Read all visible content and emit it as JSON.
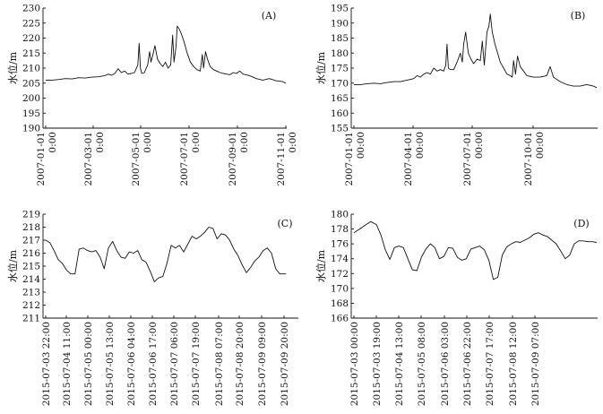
{
  "chart_data": [
    {
      "type": "line",
      "panel_label": "(A)",
      "ylabel": "水位/m",
      "ylim": [
        190,
        230
      ],
      "yticks": [
        190,
        195,
        200,
        205,
        210,
        215,
        220,
        225,
        230
      ],
      "xlim": [
        0,
        365
      ],
      "xticks": [
        {
          "x": 0,
          "label": "2007-01-01 0:00"
        },
        {
          "x": 59,
          "label": "2007-03-01 0:00"
        },
        {
          "x": 120,
          "label": "2007-05-01 0:00"
        },
        {
          "x": 181,
          "label": "2007-07-01 0:00"
        },
        {
          "x": 243,
          "label": "2007-09-01 0:00"
        },
        {
          "x": 304,
          "label": "2007-11-01 0:00"
        }
      ],
      "series": [
        {
          "x": [
            0,
            10,
            20,
            30,
            40,
            50,
            60,
            70,
            80,
            90,
            95,
            100,
            105,
            110,
            115,
            120,
            125,
            130,
            135,
            140,
            142,
            144,
            146,
            150,
            155,
            158,
            160,
            163,
            166,
            170,
            174,
            178,
            182,
            186,
            190,
            193,
            195,
            198,
            200,
            203,
            206,
            210,
            215,
            220,
            225,
            230,
            235,
            238,
            240,
            243,
            246,
            250,
            255,
            260,
            265,
            270,
            275,
            280,
            285,
            290,
            295,
            300,
            310,
            320,
            330,
            340,
            350,
            360,
            365
          ],
          "values": [
            206,
            206,
            206.2,
            206.5,
            206.4,
            206.8,
            206.7,
            207,
            207.1,
            207.5,
            208,
            207.6,
            208.2,
            209.8,
            208.5,
            209,
            208,
            208.2,
            208.5,
            211,
            218.3,
            210,
            208.2,
            208.5,
            211,
            215.5,
            212,
            214.5,
            217.5,
            213,
            211.5,
            210.5,
            212,
            210,
            211,
            221,
            212,
            217,
            224,
            223,
            221.5,
            219,
            215,
            212,
            210.5,
            209.5,
            209,
            214.5,
            210,
            215.5,
            213,
            210.5,
            209.5,
            209,
            208.5,
            208.2,
            208,
            207.8,
            208.5,
            208.2,
            209,
            208,
            207.5,
            206.5,
            206,
            206.5,
            205.8,
            205.5,
            205
          ]
        }
      ]
    },
    {
      "type": "line",
      "panel_label": "(B)",
      "ylabel": "水位/m",
      "ylim": [
        155,
        195
      ],
      "yticks": [
        155,
        160,
        165,
        170,
        175,
        180,
        185,
        190,
        195
      ],
      "xlim": [
        0,
        365
      ],
      "xticks": [
        {
          "x": 0,
          "label": "2007-01-01 00:00"
        },
        {
          "x": 90,
          "label": "2007-04-01 00:00"
        },
        {
          "x": 181,
          "label": "2007-07-01 00:00"
        },
        {
          "x": 273,
          "label": "2007-10-01 00:00"
        }
      ],
      "series": [
        {
          "x": [
            0,
            10,
            20,
            30,
            40,
            50,
            60,
            70,
            80,
            90,
            95,
            100,
            105,
            110,
            115,
            120,
            125,
            130,
            135,
            138,
            140,
            142,
            145,
            150,
            155,
            160,
            163,
            165,
            168,
            172,
            176,
            180,
            185,
            190,
            193,
            196,
            200,
            203,
            205,
            208,
            212,
            216,
            220,
            225,
            230,
            235,
            238,
            240,
            243,
            246,
            250,
            255,
            260,
            270,
            280,
            290,
            295,
            300,
            310,
            320,
            330,
            340,
            350,
            360,
            365
          ],
          "values": [
            169.5,
            169.5,
            169.8,
            170,
            169.8,
            170.2,
            170.5,
            170.5,
            171,
            171.5,
            172.5,
            172,
            173,
            173.5,
            173,
            175,
            174,
            174.5,
            174,
            176,
            183,
            175,
            174.5,
            174.5,
            177,
            180,
            177,
            183,
            187,
            180,
            178,
            176.5,
            178,
            177.5,
            184,
            176,
            187,
            189,
            193,
            187,
            183,
            180,
            177,
            175,
            173,
            172.5,
            172,
            177.5,
            173,
            179,
            175.5,
            174,
            172.5,
            172,
            172,
            172.5,
            175.5,
            172,
            170.5,
            169.5,
            169,
            169,
            169.5,
            169,
            168.5
          ]
        }
      ]
    },
    {
      "type": "line",
      "panel_label": "(C)",
      "ylabel": "水位/m",
      "ylim": [
        211,
        219
      ],
      "yticks": [
        211,
        212,
        213,
        214,
        215,
        216,
        217,
        218,
        219
      ],
      "xlim": [
        0,
        12
      ],
      "xticks": [
        {
          "x": 0,
          "label": "2015-07-03 22:00"
        },
        {
          "x": 1,
          "label": "2015-07-04 11:00"
        },
        {
          "x": 2,
          "label": "2015-07-05 00:00"
        },
        {
          "x": 3,
          "label": "2015-07-05 13:00"
        },
        {
          "x": 4,
          "label": "2015-07-06 04:00"
        },
        {
          "x": 5,
          "label": "2015-07-06 17:00"
        },
        {
          "x": 6,
          "label": "2015-07-07 06:00"
        },
        {
          "x": 7,
          "label": "2015-07-07 19:00"
        },
        {
          "x": 8,
          "label": "2015-07-08 07:00"
        },
        {
          "x": 9,
          "label": "2015-07-08 20:00"
        },
        {
          "x": 10,
          "label": "2015-07-09 09:00"
        },
        {
          "x": 11,
          "label": "2015-07-09 20:00"
        }
      ],
      "series": [
        {
          "x": [
            0,
            0.2,
            0.4,
            0.6,
            0.8,
            1.0,
            1.2,
            1.4,
            1.6,
            1.8,
            2.0,
            2.2,
            2.4,
            2.6,
            2.8,
            3.0,
            3.2,
            3.4,
            3.6,
            3.8,
            4.0,
            4.2,
            4.4,
            4.6,
            4.8,
            5.0,
            5.2,
            5.4,
            5.6,
            5.8,
            6.0,
            6.2,
            6.4,
            6.6,
            6.8,
            7.0,
            7.2,
            7.4,
            7.6,
            7.8,
            8.0,
            8.2,
            8.4,
            8.6,
            8.8,
            9.0,
            9.2,
            9.4,
            9.6,
            9.8,
            10.0,
            10.2,
            10.4,
            10.6,
            10.8,
            11.0,
            11.2,
            11.4,
            11.5
          ],
          "values": [
            217,
            216.8,
            216.2,
            215.5,
            215.2,
            214.7,
            214.4,
            214.4,
            216.3,
            216.4,
            216.2,
            216.1,
            216.2,
            215.7,
            214.8,
            216.4,
            216.9,
            216.2,
            215.7,
            215.6,
            216.1,
            216.0,
            216.2,
            215.5,
            215.3,
            214.6,
            213.8,
            214.1,
            214.2,
            215.2,
            216.6,
            216.4,
            216.6,
            216.1,
            216.7,
            217.3,
            217.1,
            217.3,
            217.6,
            218.0,
            217.9,
            217.1,
            217.5,
            217.4,
            217.0,
            216.3,
            215.8,
            215.1,
            214.5,
            214.9,
            215.4,
            215.7,
            216.2,
            216.4,
            216.0,
            214.8,
            214.4,
            214.4,
            214.4
          ]
        }
      ]
    },
    {
      "type": "line",
      "panel_label": "(D)",
      "ylabel": "水位/m",
      "ylim": [
        166,
        180
      ],
      "yticks": [
        166,
        168,
        170,
        172,
        174,
        176,
        178,
        180
      ],
      "xlim": [
        0,
        10.8
      ],
      "xticks": [
        {
          "x": 0,
          "label": "2015-07-03 00:00"
        },
        {
          "x": 1,
          "label": "2015-07-03 19:00"
        },
        {
          "x": 2,
          "label": "2015-07-04 13:00"
        },
        {
          "x": 3,
          "label": "2015-07-05 08:00"
        },
        {
          "x": 4,
          "label": "2015-07-06 03:00"
        },
        {
          "x": 5,
          "label": "2015-07-06 22:00"
        },
        {
          "x": 6,
          "label": "2015-07-07 17:00"
        },
        {
          "x": 7,
          "label": "2015-07-08 12:00"
        },
        {
          "x": 8,
          "label": "2015-07-09 07:00"
        }
      ],
      "series": [
        {
          "x": [
            0,
            0.25,
            0.5,
            0.75,
            1.0,
            1.2,
            1.4,
            1.6,
            1.8,
            2.0,
            2.2,
            2.4,
            2.6,
            2.8,
            3.0,
            3.2,
            3.4,
            3.6,
            3.8,
            4.0,
            4.2,
            4.4,
            4.6,
            4.8,
            5.0,
            5.2,
            5.4,
            5.6,
            5.8,
            6.0,
            6.2,
            6.4,
            6.6,
            6.8,
            7.0,
            7.2,
            7.4,
            7.6,
            7.8,
            8.0,
            8.2,
            8.4,
            8.6,
            8.8,
            9.0,
            9.2,
            9.4,
            9.6,
            9.8,
            10.0,
            10.2,
            10.4,
            10.6,
            10.8
          ],
          "values": [
            177.5,
            178.0,
            178.5,
            179.0,
            178.6,
            177.2,
            175.2,
            173.9,
            175.5,
            175.7,
            175.5,
            174.0,
            172.5,
            172.4,
            174.2,
            175.3,
            176.0,
            175.5,
            174.0,
            174.3,
            175.5,
            175.4,
            174.2,
            173.8,
            174.0,
            175.3,
            175.5,
            175.7,
            175.2,
            173.8,
            171.2,
            171.5,
            174.5,
            175.6,
            176.0,
            176.3,
            176.2,
            176.5,
            176.8,
            177.3,
            177.5,
            177.2,
            177.0,
            176.5,
            176.0,
            175.0,
            174.0,
            174.5,
            176.0,
            176.4,
            176.4,
            176.3,
            176.3,
            176.2
          ]
        }
      ]
    }
  ]
}
